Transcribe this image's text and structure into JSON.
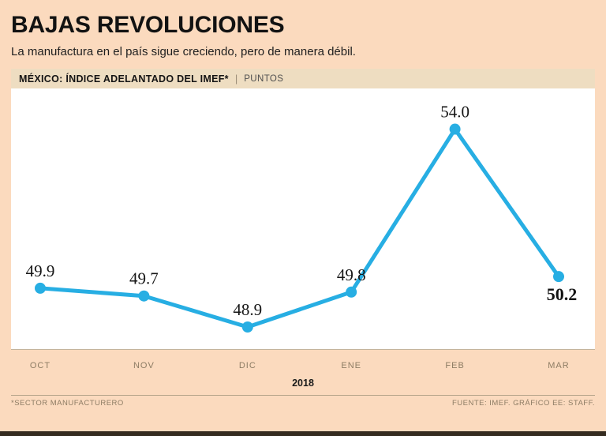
{
  "title": "BAJAS REVOLUCIONES",
  "subtitle": "La manufactura en el país sigue creciendo, pero de manera débil.",
  "header": {
    "kicker": "MÉXICO: ÍNDICE ADELANTADO DEL IMEF*",
    "divider": "|",
    "unit": "PUNTOS"
  },
  "chart_data": {
    "type": "line",
    "categories": [
      "OCT",
      "NOV",
      "DIC",
      "ENE",
      "FEB",
      "MAR"
    ],
    "values": [
      49.9,
      49.7,
      48.9,
      49.8,
      54.0,
      50.2
    ],
    "labels": [
      "49.9",
      "49.7",
      "48.9",
      "49.8",
      "54.0",
      "50.2"
    ],
    "year_label": "2018",
    "title": "MÉXICO: ÍNDICE ADELANTADO DEL IMEF*",
    "ylabel": "PUNTOS",
    "ylim": [
      48.35,
      55.05
    ],
    "grid": false,
    "legend": "none",
    "line_color": "#27aee3",
    "emphasized_last_label": true
  },
  "footer": {
    "note": "*SECTOR MANUFACTURERO",
    "source": "FUENTE: IMEF. GRÁFICO EE: STAFF."
  },
  "colors": {
    "background": "#fbdabe",
    "strip": "#eeddc1",
    "plot_background": "#ffffff",
    "line": "#27aee3",
    "muted_text": "#8d7c64",
    "bottom_bar": "#352c20"
  }
}
